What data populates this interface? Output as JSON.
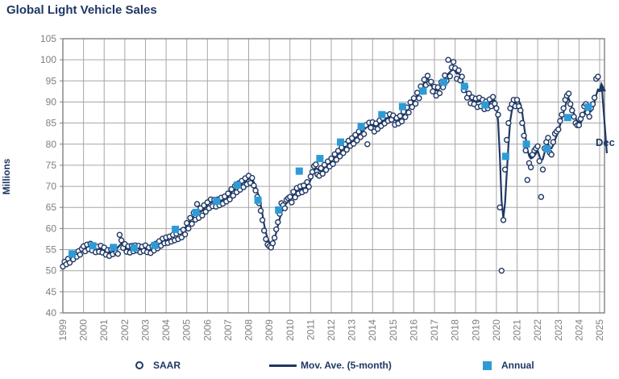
{
  "title": "Global Light Vehicle Sales",
  "annotation": {
    "label": "Dec"
  },
  "colors": {
    "navy": "#1F3864",
    "light_blue": "#2E9BD6",
    "grid": "#A6A6A6",
    "border": "#808080",
    "tick_text": "#7F7F7F",
    "background": "#FFFFFF"
  },
  "y_axis": {
    "label": "Millions",
    "min": 40,
    "max": 105,
    "step": 5
  },
  "x_axis": {
    "years": [
      1999,
      2000,
      2001,
      2002,
      2003,
      2004,
      2005,
      2006,
      2007,
      2008,
      2009,
      2010,
      2011,
      2012,
      2013,
      2014,
      2015,
      2016,
      2017,
      2018,
      2019,
      2020,
      2021,
      2022,
      2023,
      2024,
      2025
    ]
  },
  "legend": [
    {
      "label": "SAAR",
      "marker": "circle"
    },
    {
      "label": "Mov. Ave. (5-month)",
      "marker": "line"
    },
    {
      "label": "Annual",
      "marker": "square"
    }
  ],
  "chart_data": {
    "type": "combo",
    "title": "Global Light Vehicle Sales",
    "xlabel": "",
    "ylabel": "Millions",
    "ylim": [
      40,
      105
    ],
    "xlim": [
      1999,
      2025.3
    ],
    "grid": true,
    "legend_position": "bottom",
    "units": "millions of vehicles, seasonally adjusted annual rate",
    "series": [
      {
        "name": "SAAR",
        "type": "scatter",
        "frequency": "monthly",
        "values_by_year": {
          "1999": [
            51.0,
            52.1,
            51.5,
            52.8,
            51.9,
            53.4,
            52.7,
            54.0,
            53.3,
            54.6,
            53.8,
            55.2
          ],
          "2000": [
            55.8,
            54.6,
            56.2,
            55.1,
            56.4,
            54.8,
            55.9,
            54.4,
            55.7,
            54.5,
            55.9,
            54.3
          ],
          "2001": [
            55.5,
            53.8,
            54.9,
            53.5,
            55.0,
            53.9,
            55.6,
            54.3,
            54.0,
            58.5,
            57.2,
            55.4
          ],
          "2002": [
            56.3,
            54.5,
            55.8,
            54.3,
            55.9,
            54.6,
            56.0,
            54.8,
            55.9,
            54.4,
            55.7,
            54.7
          ],
          "2003": [
            56.0,
            54.4,
            55.5,
            54.2,
            55.8,
            54.8,
            56.4,
            55.3,
            57.0,
            55.9,
            57.6,
            56.5
          ],
          "2004": [
            57.9,
            56.6,
            58.1,
            56.9,
            58.5,
            57.2,
            58.8,
            57.5,
            59.2,
            57.9,
            59.7,
            58.6
          ],
          "2005": [
            61.3,
            60.0,
            62.5,
            61.1,
            63.7,
            62.1,
            65.8,
            62.5,
            64.8,
            63.1,
            65.5,
            64.0
          ],
          "2006": [
            66.2,
            64.8,
            66.9,
            65.3,
            66.8,
            65.2,
            66.9,
            65.5,
            67.3,
            65.9,
            67.6,
            66.4
          ],
          "2007": [
            68.3,
            66.9,
            69.3,
            67.8,
            70.1,
            68.6,
            70.7,
            69.2,
            71.3,
            69.8,
            71.9,
            70.5
          ],
          "2008": [
            72.5,
            70.8,
            72.0,
            70.2,
            69.0,
            67.5,
            66.0,
            64.2,
            62.0,
            59.5,
            57.5,
            56.2
          ],
          "2009": [
            55.8,
            55.5,
            56.5,
            57.8,
            59.8,
            61.5,
            63.5,
            66.0,
            65.5,
            64.8,
            66.8,
            67.2
          ],
          "2010": [
            67.5,
            66.2,
            68.7,
            67.4,
            69.6,
            68.3,
            70.0,
            68.6,
            70.2,
            69.0,
            71.0,
            69.9
          ],
          "2011": [
            72.3,
            73.4,
            74.8,
            75.2,
            72.8,
            72.5,
            74.3,
            73.0,
            75.1,
            73.9,
            75.9,
            74.7
          ],
          "2012": [
            76.6,
            75.3,
            77.6,
            76.3,
            78.4,
            77.1,
            79.2,
            77.9,
            80.0,
            78.7,
            80.8,
            79.6
          ],
          "2013": [
            81.4,
            80.1,
            82.2,
            80.9,
            83.0,
            81.7,
            83.7,
            82.4,
            84.5,
            80.0,
            85.1,
            83.9
          ],
          "2014": [
            85.2,
            83.0,
            84.9,
            83.6,
            85.6,
            84.3,
            86.2,
            84.9,
            86.8,
            85.5,
            87.1,
            85.8
          ],
          "2015": [
            86.8,
            84.6,
            86.2,
            84.9,
            86.7,
            85.4,
            87.7,
            86.4,
            88.7,
            87.5,
            89.9,
            88.8
          ],
          "2016": [
            90.9,
            89.6,
            92.2,
            90.9,
            93.7,
            92.4,
            95.3,
            94.0,
            96.2,
            94.5,
            94.8,
            92.5
          ],
          "2017": [
            93.6,
            91.5,
            93.5,
            92.1,
            94.7,
            93.5,
            96.3,
            95.0,
            100.0,
            96.1,
            98.2,
            99.5
          ],
          "2018": [
            98.0,
            95.5,
            97.5,
            95.1,
            96.0,
            92.8,
            93.6,
            91.0,
            92.0,
            89.7,
            91.1,
            89.5
          ],
          "2019": [
            90.8,
            88.8,
            91.0,
            89.0,
            90.5,
            88.3,
            90.1,
            88.5,
            90.6,
            89.0,
            91.2,
            89.6
          ],
          "2020": [
            88.5,
            87.0,
            65.0,
            50.0,
            62.0,
            74.0,
            81.0,
            85.0,
            88.5,
            89.5,
            90.5,
            89.0
          ],
          "2021": [
            90.5,
            89.0,
            88.0,
            85.0,
            82.0,
            78.5,
            71.5,
            75.5,
            74.5,
            77.5,
            78.5,
            79.0
          ],
          "2022": [
            79.5,
            76.0,
            67.5,
            74.0,
            79.0,
            80.5,
            81.5,
            78.0,
            77.5,
            80.5,
            82.5,
            83.0
          ],
          "2023": [
            83.5,
            85.5,
            87.0,
            88.5,
            90.5,
            91.5,
            92.0,
            89.5,
            88.0,
            86.5,
            85.0,
            84.5
          ],
          "2024": [
            84.5,
            86.0,
            87.0,
            89.0,
            89.5,
            87.5,
            86.5,
            88.5,
            89.5,
            91.0,
            95.5,
            96.0
          ]
        }
      },
      {
        "name": "Mov. Ave. (5-month)",
        "type": "line",
        "frequency": "monthly",
        "values_by_year": {
          "1999": [
            51.3,
            51.6,
            51.9,
            52.2,
            52.5,
            52.9,
            53.2,
            53.5,
            53.8,
            54.1,
            54.4,
            54.7
          ],
          "2000": [
            55.0,
            55.4,
            55.6,
            55.7,
            55.6,
            55.4,
            55.2,
            55.1,
            55.0,
            55.1,
            55.1,
            55.0
          ],
          "2001": [
            54.8,
            54.5,
            54.3,
            54.2,
            54.3,
            54.5,
            54.8,
            55.1,
            55.5,
            56.0,
            56.4,
            56.0
          ],
          "2002": [
            55.6,
            55.3,
            55.1,
            55.0,
            55.1,
            55.2,
            55.3,
            55.4,
            55.3,
            55.2,
            55.1,
            55.2
          ],
          "2003": [
            55.3,
            55.1,
            54.9,
            55.0,
            55.2,
            55.4,
            55.7,
            56.0,
            56.3,
            56.6,
            56.9,
            57.1
          ],
          "2004": [
            57.3,
            57.5,
            57.7,
            57.9,
            58.1,
            58.4,
            58.7,
            59.0,
            59.3,
            59.6,
            59.9,
            60.2
          ],
          "2005": [
            60.6,
            61.2,
            61.8,
            62.4,
            63.0,
            63.4,
            63.6,
            63.8,
            64.0,
            64.3,
            64.7,
            65.1
          ],
          "2006": [
            65.5,
            65.9,
            66.2,
            66.3,
            66.2,
            66.1,
            66.2,
            66.4,
            66.6,
            66.8,
            67.0,
            67.3
          ],
          "2007": [
            67.6,
            68.1,
            68.6,
            69.0,
            69.4,
            69.7,
            70.0,
            70.3,
            70.6,
            70.9,
            71.2,
            71.5
          ],
          "2008": [
            71.8,
            71.9,
            71.6,
            71.0,
            70.0,
            68.8,
            67.3,
            65.5,
            63.4,
            61.0,
            59.0,
            57.6
          ],
          "2009": [
            56.7,
            56.3,
            56.6,
            57.6,
            59.0,
            60.7,
            62.3,
            63.7,
            64.8,
            65.5,
            66.0,
            66.5
          ],
          "2010": [
            66.9,
            67.4,
            68.0,
            68.5,
            68.9,
            69.2,
            69.3,
            69.3,
            69.5,
            69.8,
            70.2,
            70.8
          ],
          "2011": [
            71.5,
            72.5,
            73.6,
            74.3,
            74.1,
            73.7,
            73.6,
            73.9,
            74.3,
            74.7,
            75.1,
            75.5
          ],
          "2012": [
            75.9,
            76.4,
            76.9,
            77.3,
            77.7,
            78.1,
            78.5,
            78.9,
            79.3,
            79.7,
            80.1,
            80.4
          ],
          "2013": [
            80.7,
            81.1,
            81.5,
            81.9,
            82.3,
            82.7,
            83.0,
            83.4,
            83.8,
            84.1,
            84.4,
            84.6
          ],
          "2014": [
            84.5,
            84.2,
            84.2,
            84.5,
            84.9,
            85.2,
            85.5,
            85.8,
            86.1,
            86.3,
            86.4,
            86.3
          ],
          "2015": [
            86.1,
            85.7,
            85.5,
            85.6,
            86.0,
            86.5,
            87.0,
            87.5,
            88.0,
            88.6,
            89.2,
            89.7
          ],
          "2016": [
            90.2,
            90.8,
            91.5,
            92.2,
            93.0,
            93.8,
            94.6,
            95.2,
            95.5,
            95.0,
            94.0,
            93.3
          ],
          "2017": [
            92.9,
            92.7,
            92.8,
            93.3,
            94.0,
            94.8,
            95.6,
            96.2,
            96.7,
            97.1,
            97.5,
            97.7
          ],
          "2018": [
            97.3,
            96.7,
            96.8,
            96.3,
            95.3,
            94.1,
            92.9,
            91.9,
            91.2,
            90.7,
            90.4,
            90.3
          ],
          "2019": [
            90.1,
            90.0,
            90.2,
            90.1,
            89.8,
            89.5,
            89.4,
            89.5,
            89.8,
            90.1,
            90.3,
            90.4
          ],
          "2020": [
            89.0,
            85.5,
            77.0,
            66.5,
            62.5,
            66.0,
            73.0,
            80.0,
            85.5,
            88.0,
            89.3,
            89.8
          ],
          "2021": [
            90.0,
            90.2,
            89.5,
            87.5,
            84.5,
            81.5,
            78.8,
            77.2,
            76.6,
            76.8,
            77.2,
            77.8
          ],
          "2022": [
            78.5,
            77.2,
            76.0,
            76.5,
            78.0,
            79.5,
            80.0,
            79.2,
            79.0,
            79.8,
            81.0,
            82.0
          ],
          "2023": [
            83.0,
            84.5,
            86.0,
            87.5,
            89.0,
            90.3,
            90.8,
            89.8,
            88.5,
            87.3,
            86.2,
            85.4
          ],
          "2024": [
            85.2,
            85.0,
            86.0,
            87.5,
            88.6,
            88.2,
            87.6,
            87.8,
            88.6,
            90.0,
            91.6,
            93.0
          ]
        }
      },
      {
        "name": "Annual",
        "type": "scatter",
        "marker": "square",
        "frequency": "annual",
        "years": [
          1999,
          2000,
          2001,
          2002,
          2003,
          2004,
          2005,
          2006,
          2007,
          2008,
          2009,
          2010,
          2011,
          2012,
          2013,
          2014,
          2015,
          2016,
          2017,
          2018,
          2019,
          2020,
          2021,
          2022,
          2023,
          2024
        ],
        "values": [
          54.0,
          55.9,
          55.5,
          55.4,
          56.0,
          59.8,
          63.8,
          66.5,
          70.3,
          66.7,
          64.4,
          73.6,
          76.6,
          80.5,
          84.2,
          87.0,
          88.9,
          92.6,
          94.7,
          93.7,
          89.3,
          77.1,
          80.0,
          78.9,
          86.3,
          88.8
        ]
      }
    ],
    "annotations": [
      {
        "label": "Dec",
        "target_series": "SAAR",
        "target_x": 2024.92,
        "target_y": 96.0
      }
    ]
  }
}
